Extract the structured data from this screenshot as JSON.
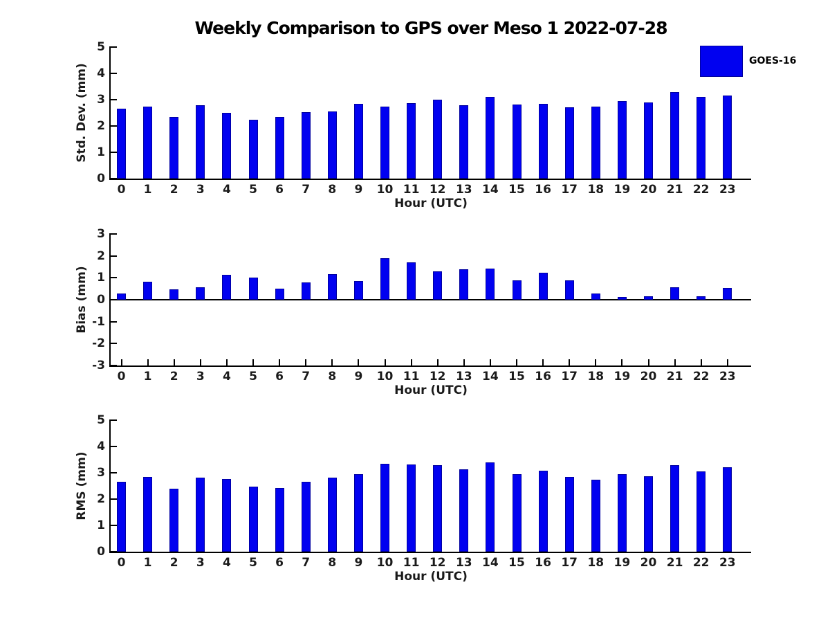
{
  "title": "Weekly Comparison to GPS over Meso 1 2022-07-28",
  "legend": {
    "label": "GOES-16"
  },
  "colors": {
    "bar": "#0101f0",
    "bar_edge": "#0000a0",
    "axis": "#000000",
    "text": "#1a1a1a"
  },
  "chart_data": [
    {
      "type": "bar",
      "series_name": "GOES-16",
      "ylabel": "Std. Dev. (mm)",
      "xlabel": "Hour (UTC)",
      "ylim": [
        0,
        5
      ],
      "yticks": [
        0,
        1,
        2,
        3,
        4,
        5
      ],
      "legend_position": "upper right outside",
      "grid": false,
      "categories": [
        "0",
        "1",
        "2",
        "3",
        "4",
        "5",
        "6",
        "7",
        "8",
        "9",
        "10",
        "11",
        "12",
        "13",
        "14",
        "15",
        "16",
        "17",
        "18",
        "19",
        "20",
        "21",
        "22",
        "23"
      ],
      "values": [
        2.65,
        2.73,
        2.35,
        2.78,
        2.51,
        2.25,
        2.35,
        2.53,
        2.56,
        2.83,
        2.75,
        2.88,
        3.01,
        2.8,
        3.11,
        2.81,
        2.85,
        2.72,
        2.75,
        2.96,
        2.89,
        3.28,
        3.1,
        3.17
      ]
    },
    {
      "type": "bar",
      "series_name": "GOES-16",
      "ylabel": "Bias (mm)",
      "xlabel": "Hour (UTC)",
      "ylim": [
        -3,
        3
      ],
      "yticks": [
        -3,
        -2,
        -1,
        0,
        1,
        2,
        3
      ],
      "grid": false,
      "categories": [
        "0",
        "1",
        "2",
        "3",
        "4",
        "5",
        "6",
        "7",
        "8",
        "9",
        "10",
        "11",
        "12",
        "13",
        "14",
        "15",
        "16",
        "17",
        "18",
        "19",
        "20",
        "21",
        "22",
        "23"
      ],
      "values": [
        0.3,
        0.83,
        0.46,
        0.56,
        1.13,
        1.01,
        0.52,
        0.8,
        1.16,
        0.84,
        1.89,
        1.69,
        1.29,
        1.38,
        1.42,
        0.87,
        1.22,
        0.88,
        0.27,
        0.14,
        0.17,
        0.57,
        0.17,
        0.55
      ]
    },
    {
      "type": "bar",
      "series_name": "GOES-16",
      "ylabel": "RMS (mm)",
      "xlabel": "Hour (UTC)",
      "ylim": [
        0,
        5
      ],
      "yticks": [
        0,
        1,
        2,
        3,
        4,
        5
      ],
      "grid": false,
      "categories": [
        "0",
        "1",
        "2",
        "3",
        "4",
        "5",
        "6",
        "7",
        "8",
        "9",
        "10",
        "11",
        "12",
        "13",
        "14",
        "15",
        "16",
        "17",
        "18",
        "19",
        "20",
        "21",
        "22",
        "23"
      ],
      "values": [
        2.65,
        2.83,
        2.4,
        2.81,
        2.76,
        2.47,
        2.42,
        2.65,
        2.81,
        2.94,
        3.33,
        3.32,
        3.28,
        3.13,
        3.4,
        2.95,
        3.07,
        2.83,
        2.75,
        2.94,
        2.88,
        3.3,
        3.06,
        3.2
      ]
    }
  ]
}
